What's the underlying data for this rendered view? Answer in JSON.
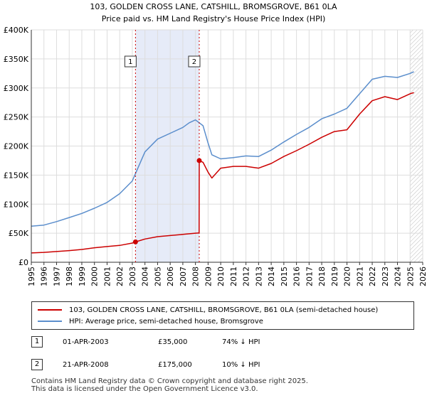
{
  "chart_data": {
    "type": "line",
    "title": "103, GOLDEN CROSS LANE, CATSHILL, BROMSGROVE, B61 0LA",
    "subtitle": "Price paid vs. HM Land Registry's House Price Index (HPI)",
    "xlabel": "",
    "ylabel": "",
    "xlim": [
      1995,
      2026
    ],
    "ylim": [
      0,
      400000
    ],
    "y_ticks": [
      0,
      50000,
      100000,
      150000,
      200000,
      250000,
      300000,
      350000,
      400000
    ],
    "y_tick_labels": [
      "£0",
      "£50K",
      "£100K",
      "£150K",
      "£200K",
      "£250K",
      "£300K",
      "£350K",
      "£400K"
    ],
    "x_ticks": [
      1995,
      1996,
      1997,
      1998,
      1999,
      2000,
      2001,
      2002,
      2003,
      2004,
      2005,
      2006,
      2007,
      2008,
      2009,
      2010,
      2011,
      2012,
      2013,
      2014,
      2015,
      2016,
      2017,
      2018,
      2019,
      2020,
      2021,
      2022,
      2023,
      2024,
      2025,
      2026
    ],
    "x_tick_labels": [
      "1995",
      "1996",
      "1997",
      "1998",
      "1999",
      "2000",
      "2001",
      "2002",
      "2003",
      "2004",
      "2005",
      "2006",
      "2007",
      "2008",
      "2009",
      "2010",
      "2011",
      "2012",
      "2013",
      "2014",
      "2015",
      "2016",
      "2017",
      "2018",
      "2019",
      "2020",
      "2021",
      "2022",
      "2023",
      "2024",
      "2025",
      "2026"
    ],
    "grid": true,
    "shaded_range": [
      2003.25,
      2008.3
    ],
    "hatched_from": 2025.0,
    "series": [
      {
        "name": "103, GOLDEN CROSS LANE, CATSHILL, BROMSGROVE, B61 0LA (semi-detached house)",
        "color": "#cc0000",
        "x": [
          1995.0,
          1996.0,
          1997.0,
          1998.0,
          1999.0,
          2000.0,
          2001.0,
          2002.0,
          2003.0,
          2003.25,
          2004.0,
          2005.0,
          2006.0,
          2007.0,
          2008.0,
          2008.29,
          2008.3,
          2008.6,
          2009.0,
          2009.3,
          2010.0,
          2011.0,
          2012.0,
          2013.0,
          2014.0,
          2015.0,
          2016.0,
          2017.0,
          2018.0,
          2019.0,
          2020.0,
          2021.0,
          2022.0,
          2023.0,
          2024.0,
          2025.0,
          2025.3
        ],
        "y": [
          16000,
          17000,
          18500,
          20000,
          22000,
          25000,
          27000,
          29000,
          33000,
          35000,
          40000,
          44000,
          46000,
          48000,
          50000,
          50500,
          175000,
          172000,
          155000,
          145000,
          162000,
          165000,
          165000,
          162000,
          170000,
          182000,
          192000,
          203000,
          215000,
          225000,
          228000,
          255000,
          278000,
          285000,
          280000,
          290000,
          292000
        ]
      },
      {
        "name": "HPI: Average price, semi-detached house, Bromsgrove",
        "color": "#5b8ecc",
        "x": [
          1995.0,
          1996.0,
          1997.0,
          1998.0,
          1999.0,
          2000.0,
          2001.0,
          2002.0,
          2003.0,
          2003.5,
          2004.0,
          2005.0,
          2006.0,
          2007.0,
          2007.5,
          2008.0,
          2008.6,
          2009.0,
          2009.3,
          2010.0,
          2011.0,
          2012.0,
          2013.0,
          2014.0,
          2015.0,
          2016.0,
          2017.0,
          2018.0,
          2019.0,
          2020.0,
          2021.0,
          2022.0,
          2023.0,
          2024.0,
          2025.0,
          2025.3
        ],
        "y": [
          62000,
          64000,
          70000,
          77000,
          84000,
          93000,
          103000,
          118000,
          140000,
          165000,
          190000,
          212000,
          222000,
          232000,
          240000,
          245000,
          235000,
          205000,
          185000,
          178000,
          180000,
          183000,
          182000,
          193000,
          207000,
          220000,
          232000,
          247000,
          255000,
          265000,
          290000,
          315000,
          320000,
          318000,
          325000,
          328000
        ]
      }
    ],
    "sales": [
      {
        "label": "1",
        "x": 2003.25,
        "y": 35000
      },
      {
        "label": "2",
        "x": 2008.3,
        "y": 175000
      }
    ]
  },
  "legend": {
    "property_label": "103, GOLDEN CROSS LANE, CATSHILL, BROMSGROVE, B61 0LA (semi-detached house)",
    "hpi_label": "HPI: Average price, semi-detached house, Bromsgrove",
    "property_color": "#cc0000",
    "hpi_color": "#5b8ecc"
  },
  "sales_table": [
    {
      "num": "1",
      "date": "01-APR-2003",
      "price": "£35,000",
      "hpi": "74% ↓ HPI"
    },
    {
      "num": "2",
      "date": "21-APR-2008",
      "price": "£175,000",
      "hpi": "10% ↓ HPI"
    }
  ],
  "footer": {
    "line1": "Contains HM Land Registry data © Crown copyright and database right 2025.",
    "line2": "This data is licensed under the Open Government Licence v3.0."
  }
}
